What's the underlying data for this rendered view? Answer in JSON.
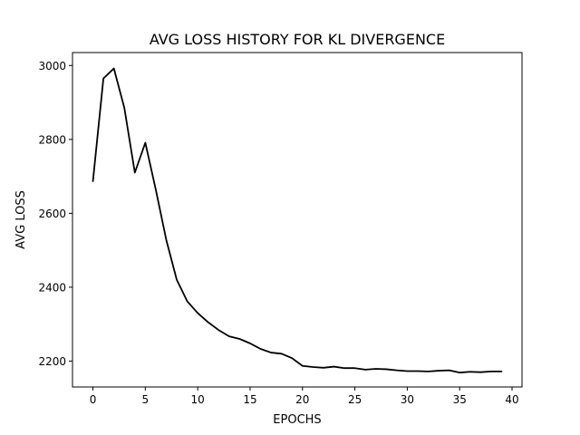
{
  "chart_data": {
    "type": "line",
    "title": "AVG LOSS HISTORY FOR KL DIVERGENCE",
    "xlabel": "EPOCHS",
    "ylabel": "AVG LOSS",
    "xlim": [
      -1.95,
      40.95
    ],
    "ylim": [
      2130,
      3035
    ],
    "xticks": [
      0,
      5,
      10,
      15,
      20,
      25,
      30,
      35,
      40
    ],
    "yticks": [
      2200,
      2400,
      2600,
      2800,
      3000
    ],
    "grid": false,
    "legend": "none",
    "line_color": "#000000",
    "series": [
      {
        "x": [
          0,
          1,
          2,
          3,
          4,
          5,
          6,
          7,
          8,
          9,
          10,
          11,
          12,
          13,
          14,
          15,
          16,
          17,
          18,
          19,
          20,
          21,
          22,
          23,
          24,
          25,
          26,
          27,
          28,
          29,
          30,
          31,
          32,
          33,
          34,
          35,
          36,
          37,
          38,
          39
        ],
        "y": [
          2687,
          2965,
          2992,
          2885,
          2710,
          2791,
          2664,
          2528,
          2420,
          2362,
          2330,
          2305,
          2284,
          2267,
          2260,
          2248,
          2233,
          2223,
          2220,
          2208,
          2187,
          2184,
          2182,
          2185,
          2181,
          2181,
          2177,
          2179,
          2178,
          2175,
          2173,
          2173,
          2172,
          2174,
          2175,
          2169,
          2171,
          2170,
          2172,
          2172
        ]
      }
    ]
  }
}
